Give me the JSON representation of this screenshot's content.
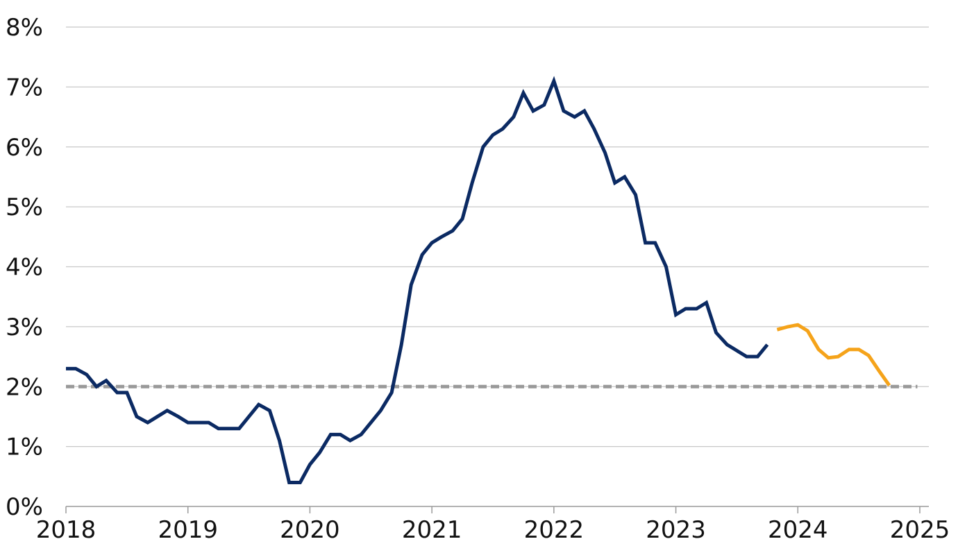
{
  "chart_data": {
    "type": "line",
    "title": "",
    "xlabel": "",
    "ylabel": "",
    "xlim": [
      2018,
      2025
    ],
    "ylim": [
      0,
      8
    ],
    "x_ticks": [
      "2018",
      "2019",
      "2020",
      "2021",
      "2022",
      "2023",
      "2024",
      "2025"
    ],
    "y_ticks": [
      "0%",
      "1%",
      "2%",
      "3%",
      "4%",
      "5%",
      "6%",
      "7%",
      "8%"
    ],
    "grid": "horizontal",
    "reference_line": {
      "y": 2.0,
      "style": "dashed",
      "color": "#999999"
    },
    "series": [
      {
        "color": "#0b2a63",
        "style": "solid",
        "points": [
          [
            2018.0,
            2.3
          ],
          [
            2018.08,
            2.3
          ],
          [
            2018.17,
            2.2
          ],
          [
            2018.25,
            2.0
          ],
          [
            2018.33,
            2.1
          ],
          [
            2018.42,
            1.9
          ],
          [
            2018.5,
            1.9
          ],
          [
            2018.58,
            1.5
          ],
          [
            2018.67,
            1.4
          ],
          [
            2018.75,
            1.5
          ],
          [
            2018.83,
            1.6
          ],
          [
            2018.92,
            1.5
          ],
          [
            2019.0,
            1.4
          ],
          [
            2019.08,
            1.4
          ],
          [
            2019.17,
            1.4
          ],
          [
            2019.25,
            1.3
          ],
          [
            2019.33,
            1.3
          ],
          [
            2019.42,
            1.3
          ],
          [
            2019.5,
            1.5
          ],
          [
            2019.58,
            1.7
          ],
          [
            2019.67,
            1.6
          ],
          [
            2019.75,
            1.1
          ],
          [
            2019.83,
            0.4
          ],
          [
            2019.92,
            0.4
          ],
          [
            2020.0,
            0.7
          ],
          [
            2020.08,
            0.9
          ],
          [
            2020.17,
            1.2
          ],
          [
            2020.25,
            1.2
          ],
          [
            2020.33,
            1.1
          ],
          [
            2020.42,
            1.2
          ],
          [
            2020.5,
            1.4
          ],
          [
            2020.58,
            1.6
          ],
          [
            2020.67,
            1.9
          ],
          [
            2020.75,
            2.7
          ],
          [
            2020.83,
            3.7
          ],
          [
            2020.92,
            4.2
          ],
          [
            2021.0,
            4.4
          ],
          [
            2021.08,
            4.5
          ],
          [
            2021.17,
            4.6
          ],
          [
            2021.25,
            4.8
          ],
          [
            2021.33,
            5.4
          ],
          [
            2021.42,
            6.0
          ],
          [
            2021.5,
            6.2
          ],
          [
            2021.58,
            6.3
          ],
          [
            2021.67,
            6.5
          ],
          [
            2021.75,
            6.9
          ],
          [
            2021.83,
            6.6
          ],
          [
            2021.92,
            6.7
          ],
          [
            2022.0,
            7.1
          ],
          [
            2022.08,
            6.6
          ],
          [
            2022.17,
            6.5
          ],
          [
            2022.25,
            6.6
          ],
          [
            2022.33,
            6.3
          ],
          [
            2022.42,
            5.9
          ],
          [
            2022.5,
            5.4
          ],
          [
            2022.58,
            5.5
          ],
          [
            2022.67,
            5.2
          ],
          [
            2022.75,
            4.4
          ],
          [
            2022.83,
            4.4
          ],
          [
            2022.92,
            4.0
          ],
          [
            2023.0,
            3.2
          ],
          [
            2023.08,
            3.3
          ],
          [
            2023.17,
            3.3
          ],
          [
            2023.25,
            3.4
          ],
          [
            2023.33,
            2.9
          ],
          [
            2023.42,
            2.7
          ],
          [
            2023.5,
            2.6
          ],
          [
            2023.58,
            2.5
          ],
          [
            2023.67,
            2.5
          ],
          [
            2023.75,
            2.7
          ]
        ]
      },
      {
        "color": "#f5a31a",
        "style": "solid",
        "points": [
          [
            2023.83,
            2.95
          ],
          [
            2023.92,
            3.0
          ],
          [
            2024.0,
            3.03
          ],
          [
            2024.08,
            2.93
          ],
          [
            2024.17,
            2.62
          ],
          [
            2024.25,
            2.48
          ],
          [
            2024.33,
            2.5
          ],
          [
            2024.42,
            2.62
          ],
          [
            2024.5,
            2.62
          ],
          [
            2024.58,
            2.52
          ],
          [
            2024.67,
            2.25
          ],
          [
            2024.75,
            2.02
          ]
        ]
      }
    ]
  }
}
